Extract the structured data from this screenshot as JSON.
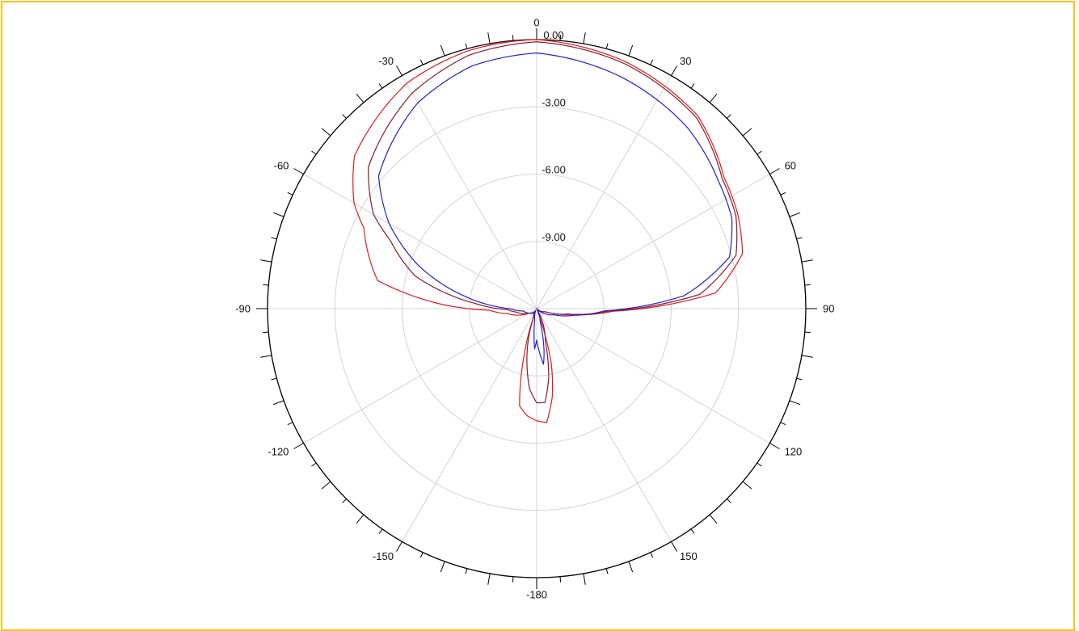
{
  "chart_data": {
    "type": "polar-line",
    "title": "",
    "radial_axis": {
      "min_db": -12,
      "max_db": 0,
      "ring_values": [
        0,
        -3,
        -6,
        -9
      ],
      "ring_labels": [
        "0.00",
        "-3.00",
        "-6.00",
        "-9.00"
      ]
    },
    "angle_axis": {
      "zero": "top",
      "direction": "clockwise",
      "labels": [
        "0",
        "30",
        "60",
        "90",
        "120",
        "150",
        "-180",
        "-150",
        "-120",
        "-90",
        "-60",
        "-30"
      ],
      "label_angles": [
        0,
        30,
        60,
        90,
        120,
        150,
        180,
        210,
        240,
        270,
        300,
        330
      ],
      "major_tick_step": 10,
      "minor_tick_step": 5
    },
    "grid": true,
    "series": [
      {
        "color": "#E41A1C",
        "angles": [
          0,
          20,
          40,
          55,
          65,
          75,
          85,
          92,
          100,
          110,
          130,
          150,
          160,
          165,
          170,
          175,
          180,
          185,
          190,
          195,
          200,
          210,
          240,
          260,
          268,
          272,
          280,
          295,
          300,
          310,
          330,
          345
        ],
        "values": [
          0.0,
          -0.3,
          -0.8,
          -1.8,
          -2.1,
          -2.5,
          -4.0,
          -8.6,
          -10.5,
          -11.6,
          -11.9,
          -12.0,
          -11.8,
          -9.5,
          -8.0,
          -6.9,
          -7.0,
          -7.2,
          -7.6,
          -9.8,
          -11.6,
          -11.8,
          -11.6,
          -10.7,
          -9.9,
          -8.0,
          -4.8,
          -3.5,
          -2.6,
          -1.4,
          -0.4,
          -0.1
        ]
      },
      {
        "color": "#8B1A2B",
        "angles": [
          0,
          20,
          40,
          55,
          65,
          75,
          85,
          92,
          100,
          110,
          130,
          150,
          165,
          170,
          175,
          180,
          185,
          190,
          200,
          210,
          240,
          260,
          268,
          275,
          285,
          295,
          300,
          310,
          330,
          345
        ],
        "values": [
          -0.1,
          -0.4,
          -0.9,
          -1.9,
          -2.2,
          -2.8,
          -4.7,
          -8.8,
          -10.6,
          -11.6,
          -11.9,
          -12.0,
          -10.5,
          -8.9,
          -7.8,
          -7.8,
          -8.4,
          -9.5,
          -11.6,
          -11.8,
          -11.6,
          -11.1,
          -10.7,
          -9.2,
          -6.4,
          -4.8,
          -3.6,
          -2.2,
          -0.9,
          -0.3
        ]
      },
      {
        "color": "#1F1FD6",
        "angles": [
          0,
          20,
          40,
          55,
          65,
          75,
          85,
          92,
          100,
          110,
          130,
          150,
          165,
          170,
          173,
          176,
          180,
          183,
          186,
          190,
          200,
          210,
          240,
          260,
          270,
          280,
          290,
          300,
          310,
          330,
          345
        ],
        "values": [
          -0.6,
          -1.0,
          -1.5,
          -2.1,
          -2.4,
          -3.1,
          -5.4,
          -9.0,
          -10.3,
          -11.2,
          -11.8,
          -12.0,
          -11.4,
          -10.1,
          -9.5,
          -10.0,
          -10.6,
          -10.2,
          -10.9,
          -11.5,
          -11.8,
          -11.9,
          -11.6,
          -11.4,
          -10.8,
          -8.7,
          -6.4,
          -4.4,
          -2.8,
          -1.4,
          -0.8
        ]
      }
    ]
  }
}
